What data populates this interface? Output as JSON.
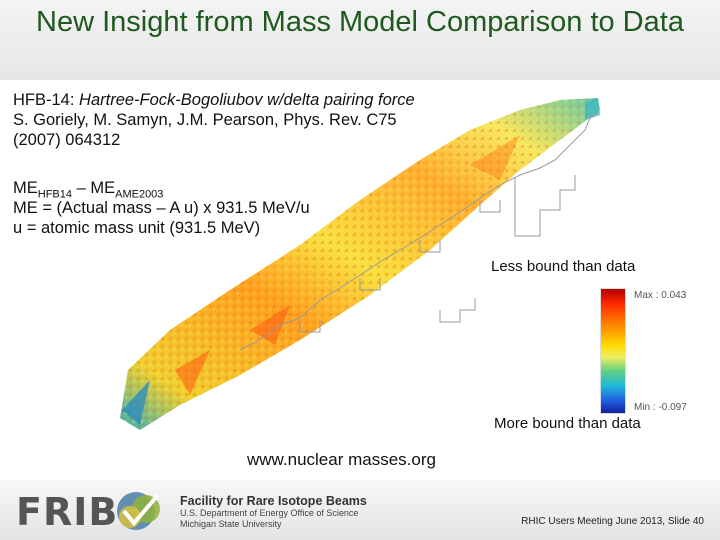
{
  "slide": {
    "title": "New Insight from Mass Model Comparison to Data"
  },
  "reference": {
    "model_prefix": "HFB-14: ",
    "model_desc": "Hartree-Fock-Bogoliubov w/delta pairing force",
    "authors": "S. Goriely, M. Samyn, J.M. Pearson, Phys. Rev. C75",
    "citation": "(2007) 064312"
  },
  "definition": {
    "me_label_1": "ME",
    "me_sub_1": "HFB14",
    "dash": " – ",
    "me_label_2": "ME",
    "me_sub_2": "AME2003",
    "formula": "ME = (Actual mass – A u) x 931.5 MeV/u",
    "unit_def": "u = atomic mass unit (931.5 MeV)"
  },
  "annotations": {
    "less_bound": "Less bound than data",
    "more_bound": "More bound than data",
    "url": "www.nuclear masses.org"
  },
  "legend": {
    "max_label": "Max : 0.043",
    "min_label": "Min : -0.097",
    "colors": [
      "#b00000",
      "#ff2a00",
      "#ff8000",
      "#ffd800",
      "#f0f060",
      "#60d080",
      "#20b8d8",
      "#2060e0",
      "#1020a0"
    ]
  },
  "footer": {
    "logo_text": "FRIB",
    "facility_name": "Facility for Rare Isotope Beams",
    "facility_sub1": "U.S. Department of Energy Office of Science",
    "facility_sub2": "Michigan State University",
    "meeting": "RHIC Users Meeting June 2013, Slide 40"
  }
}
